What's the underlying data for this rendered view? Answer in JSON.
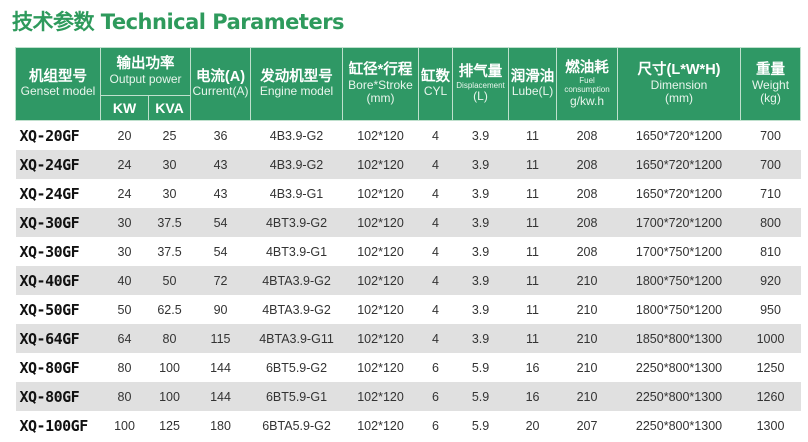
{
  "title": "技术参数 Technical Parameters",
  "headers": {
    "model": {
      "cn": "机组型号",
      "en": "Genset model"
    },
    "power": {
      "cn": "输出功率",
      "en": "Output power",
      "kw": "KW",
      "kva": "KVA"
    },
    "current": {
      "cn": "电流(A)",
      "en": "Current(A)"
    },
    "engine": {
      "cn": "发动机型号",
      "en": "Engine model"
    },
    "bore": {
      "cn": "缸径*行程",
      "en": "Bore*Stroke",
      "unit": "(mm)"
    },
    "cyl": {
      "cn": "缸数",
      "en": "CYL"
    },
    "disp": {
      "cn": "排气量",
      "en": "Displacement",
      "unit": "(L)"
    },
    "lube": {
      "cn": "润滑油",
      "en": "Lube(L)"
    },
    "fuel": {
      "cn": "燃油耗",
      "en": "Fuel consumption",
      "unit": "g/kw.h"
    },
    "dim": {
      "cn": "尺寸(L*W*H)",
      "en": "Dimension",
      "unit": "(mm)"
    },
    "weight": {
      "cn": "重量",
      "en": "Weight",
      "unit": "(kg)"
    }
  },
  "rows": [
    [
      "XQ-20GF",
      "20",
      "25",
      "36",
      "4B3.9-G2",
      "102*120",
      "4",
      "3.9",
      "11",
      "208",
      "1650*720*1200",
      "700"
    ],
    [
      "XQ-24GF",
      "24",
      "30",
      "43",
      "4B3.9-G2",
      "102*120",
      "4",
      "3.9",
      "11",
      "208",
      "1650*720*1200",
      "700"
    ],
    [
      "XQ-24GF",
      "24",
      "30",
      "43",
      "4B3.9-G1",
      "102*120",
      "4",
      "3.9",
      "11",
      "208",
      "1650*720*1200",
      "710"
    ],
    [
      "XQ-30GF",
      "30",
      "37.5",
      "54",
      "4BT3.9-G2",
      "102*120",
      "4",
      "3.9",
      "11",
      "208",
      "1700*720*1200",
      "800"
    ],
    [
      "XQ-30GF",
      "30",
      "37.5",
      "54",
      "4BT3.9-G1",
      "102*120",
      "4",
      "3.9",
      "11",
      "208",
      "1700*750*1200",
      "810"
    ],
    [
      "XQ-40GF",
      "40",
      "50",
      "72",
      "4BTA3.9-G2",
      "102*120",
      "4",
      "3.9",
      "11",
      "210",
      "1800*750*1200",
      "920"
    ],
    [
      "XQ-50GF",
      "50",
      "62.5",
      "90",
      "4BTA3.9-G2",
      "102*120",
      "4",
      "3.9",
      "11",
      "210",
      "1800*750*1200",
      "950"
    ],
    [
      "XQ-64GF",
      "64",
      "80",
      "115",
      "4BTA3.9-G11",
      "102*120",
      "4",
      "3.9",
      "11",
      "210",
      "1850*800*1300",
      "1000"
    ],
    [
      "XQ-80GF",
      "80",
      "100",
      "144",
      "6BT5.9-G2",
      "102*120",
      "6",
      "5.9",
      "16",
      "210",
      "2250*800*1300",
      "1250"
    ],
    [
      "XQ-80GF",
      "80",
      "100",
      "144",
      "6BT5.9-G1",
      "102*120",
      "6",
      "5.9",
      "16",
      "210",
      "2250*800*1300",
      "1260"
    ],
    [
      "XQ-100GF",
      "100",
      "125",
      "180",
      "6BTA5.9-G2",
      "102*120",
      "6",
      "5.9",
      "20",
      "207",
      "2250*800*1300",
      "1300"
    ]
  ]
}
